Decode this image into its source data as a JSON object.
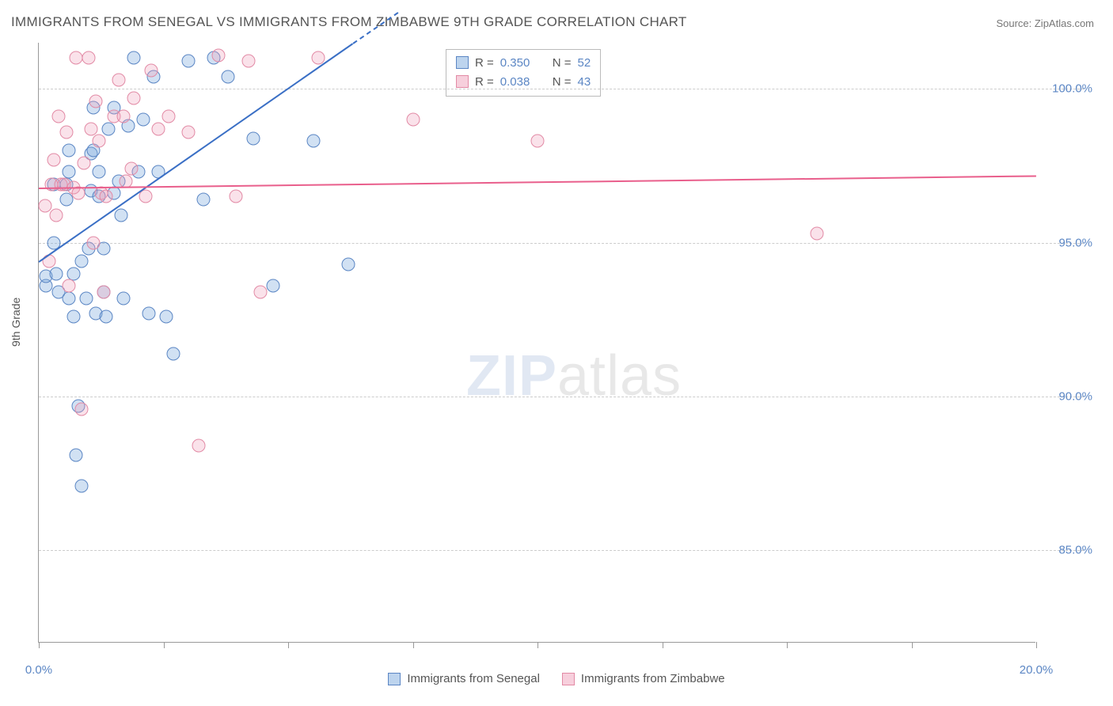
{
  "title": "IMMIGRANTS FROM SENEGAL VS IMMIGRANTS FROM ZIMBABWE 9TH GRADE CORRELATION CHART",
  "source": "Source: ZipAtlas.com",
  "watermark_a": "ZIP",
  "watermark_b": "atlas",
  "ylabel": "9th Grade",
  "chart": {
    "type": "scatter",
    "xlim": [
      0,
      20
    ],
    "ylim": [
      82,
      101.5
    ],
    "y_ticks": [
      85.0,
      90.0,
      95.0,
      100.0
    ],
    "y_tick_labels": [
      "85.0%",
      "90.0%",
      "95.0%",
      "100.0%"
    ],
    "x_ticks": [
      0,
      2.5,
      5,
      7.5,
      10,
      12.5,
      15,
      17.5,
      20
    ],
    "x_tick_labels": [
      "0.0%",
      "",
      "",
      "",
      "",
      "",
      "",
      "",
      "20.0%"
    ],
    "background_color": "#ffffff",
    "grid_color": "#cccccc",
    "marker_size": 17,
    "series": [
      {
        "name": "Immigrants from Senegal",
        "r": "0.350",
        "n": "52",
        "color_fill": "rgba(124,169,222,0.35)",
        "color_stroke": "#5b86c4",
        "trend_color": "#3a6fc5",
        "trend_x0": 0.0,
        "trend_y0": 94.4,
        "trend_x1_solid": 6.3,
        "trend_y1_solid": 101.5,
        "trend_x1_dash": 7.2,
        "trend_y1_dash": 102.5,
        "points": [
          [
            0.15,
            93.6
          ],
          [
            0.15,
            93.9
          ],
          [
            0.3,
            96.9
          ],
          [
            0.3,
            95.0
          ],
          [
            0.35,
            94.0
          ],
          [
            0.4,
            93.4
          ],
          [
            0.55,
            96.9
          ],
          [
            0.55,
            96.4
          ],
          [
            0.6,
            98.0
          ],
          [
            0.6,
            97.3
          ],
          [
            0.6,
            93.2
          ],
          [
            0.7,
            92.6
          ],
          [
            0.7,
            94.0
          ],
          [
            0.75,
            88.1
          ],
          [
            0.8,
            89.7
          ],
          [
            0.85,
            94.4
          ],
          [
            0.85,
            87.1
          ],
          [
            0.95,
            93.2
          ],
          [
            1.0,
            94.8
          ],
          [
            1.05,
            96.7
          ],
          [
            1.05,
            97.9
          ],
          [
            1.1,
            98.0
          ],
          [
            1.1,
            99.4
          ],
          [
            1.15,
            92.7
          ],
          [
            1.2,
            96.5
          ],
          [
            1.2,
            97.3
          ],
          [
            1.3,
            93.4
          ],
          [
            1.3,
            94.8
          ],
          [
            1.35,
            92.6
          ],
          [
            1.4,
            98.7
          ],
          [
            1.5,
            99.4
          ],
          [
            1.5,
            96.6
          ],
          [
            1.6,
            97.0
          ],
          [
            1.65,
            95.9
          ],
          [
            1.7,
            93.2
          ],
          [
            1.8,
            98.8
          ],
          [
            1.9,
            101.0
          ],
          [
            2.0,
            97.3
          ],
          [
            2.1,
            99.0
          ],
          [
            2.2,
            92.7
          ],
          [
            2.3,
            100.4
          ],
          [
            2.4,
            97.3
          ],
          [
            2.55,
            92.6
          ],
          [
            2.7,
            91.4
          ],
          [
            3.0,
            100.9
          ],
          [
            3.3,
            96.4
          ],
          [
            3.5,
            101.0
          ],
          [
            3.8,
            100.4
          ],
          [
            4.3,
            98.4
          ],
          [
            4.7,
            93.6
          ],
          [
            5.5,
            98.3
          ],
          [
            6.2,
            94.3
          ]
        ]
      },
      {
        "name": "Immigrants from Zimbabwe",
        "r": "0.038",
        "n": "43",
        "color_fill": "rgba(240,160,185,0.30)",
        "color_stroke": "#e28aa5",
        "trend_color": "#e95f8c",
        "trend_x0": 0.0,
        "trend_y0": 96.8,
        "trend_x1_solid": 20.0,
        "trend_y1_solid": 97.2,
        "points": [
          [
            0.12,
            96.2
          ],
          [
            0.2,
            94.4
          ],
          [
            0.25,
            96.9
          ],
          [
            0.3,
            97.7
          ],
          [
            0.35,
            95.9
          ],
          [
            0.4,
            99.1
          ],
          [
            0.45,
            96.9
          ],
          [
            0.5,
            96.9
          ],
          [
            0.55,
            98.6
          ],
          [
            0.6,
            93.6
          ],
          [
            0.7,
            96.8
          ],
          [
            0.75,
            101.0
          ],
          [
            0.8,
            96.6
          ],
          [
            0.85,
            89.6
          ],
          [
            0.9,
            97.6
          ],
          [
            1.0,
            101.0
          ],
          [
            1.05,
            98.7
          ],
          [
            1.1,
            95.0
          ],
          [
            1.15,
            99.6
          ],
          [
            1.2,
            98.3
          ],
          [
            1.25,
            96.6
          ],
          [
            1.3,
            93.4
          ],
          [
            1.35,
            96.5
          ],
          [
            1.5,
            99.1
          ],
          [
            1.6,
            100.3
          ],
          [
            1.7,
            99.1
          ],
          [
            1.75,
            97.0
          ],
          [
            1.85,
            97.4
          ],
          [
            1.9,
            99.7
          ],
          [
            2.15,
            96.5
          ],
          [
            2.25,
            100.6
          ],
          [
            2.4,
            98.7
          ],
          [
            2.6,
            99.1
          ],
          [
            3.0,
            98.6
          ],
          [
            3.2,
            88.4
          ],
          [
            3.6,
            101.1
          ],
          [
            3.95,
            96.5
          ],
          [
            4.2,
            100.9
          ],
          [
            4.45,
            93.4
          ],
          [
            5.6,
            101.0
          ],
          [
            7.5,
            99.0
          ],
          [
            10.0,
            98.3
          ],
          [
            15.6,
            95.3
          ]
        ]
      }
    ],
    "r_legend": [
      {
        "swatch": "blue",
        "r_label": "R =",
        "n_label": "N ="
      },
      {
        "swatch": "pink",
        "r_label": "R =",
        "n_label": "N ="
      }
    ]
  }
}
